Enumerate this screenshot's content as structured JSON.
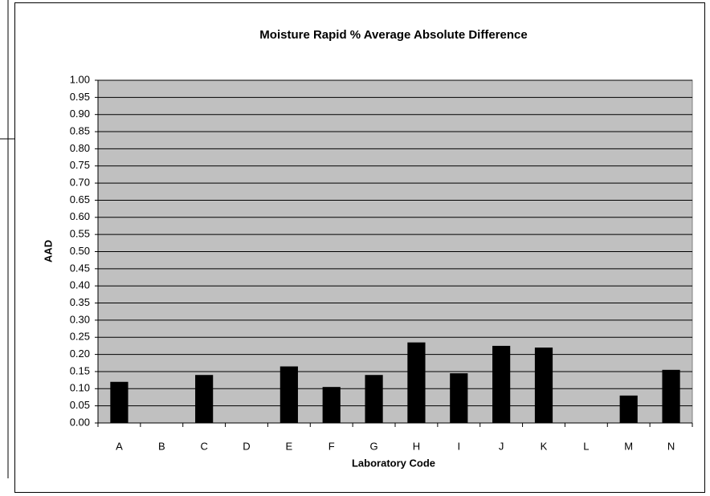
{
  "chart_data": {
    "type": "bar",
    "title": "Moisture Rapid % Average Absolute Difference",
    "x_label": "Laboratory Code",
    "y_label": "AAD",
    "categories": [
      "A",
      "B",
      "C",
      "D",
      "E",
      "F",
      "G",
      "H",
      "I",
      "J",
      "K",
      "L",
      "M",
      "N"
    ],
    "values": [
      0.12,
      null,
      0.14,
      null,
      0.165,
      0.105,
      0.14,
      0.235,
      0.145,
      0.225,
      0.22,
      null,
      0.08,
      0.155
    ],
    "color": "#000000",
    "plot_background": "#c0c0c0",
    "ylim": [
      0,
      1
    ],
    "yticks": [
      {
        "value": 0,
        "label": "0.00"
      },
      {
        "value": 0.05,
        "label": "0.05"
      },
      {
        "value": 0.1,
        "label": "0.10"
      },
      {
        "value": 0.15,
        "label": "0.15"
      },
      {
        "value": 0.2,
        "label": "0.20"
      },
      {
        "value": 0.25,
        "label": "0.25"
      },
      {
        "value": 0.3,
        "label": "0.30"
      },
      {
        "value": 0.35,
        "label": "0.35"
      },
      {
        "value": 0.4,
        "label": "0.40"
      },
      {
        "value": 0.45,
        "label": "0.45"
      },
      {
        "value": 0.5,
        "label": "0.50"
      },
      {
        "value": 0.55,
        "label": "0.55"
      },
      {
        "value": 0.6,
        "label": "0.60"
      },
      {
        "value": 0.65,
        "label": "0.65"
      },
      {
        "value": 0.7,
        "label": "0.70"
      },
      {
        "value": 0.75,
        "label": "0.75"
      },
      {
        "value": 0.8,
        "label": "0.80"
      },
      {
        "value": 0.85,
        "label": "0.85"
      },
      {
        "value": 0.9,
        "label": "0.90"
      },
      {
        "value": 0.95,
        "label": "0.95"
      },
      {
        "value": 1,
        "label": "1.00"
      }
    ],
    "grid": true
  }
}
